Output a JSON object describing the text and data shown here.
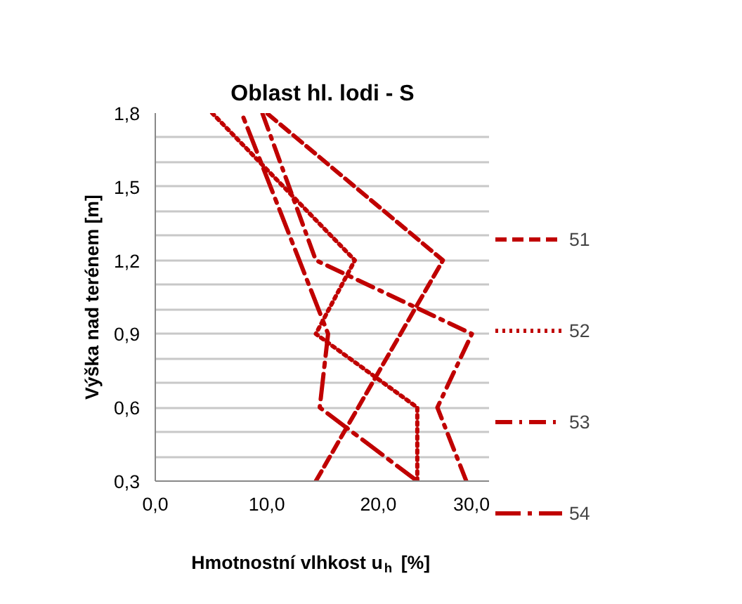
{
  "chart_data": {
    "type": "line",
    "title": "Oblast hl. lodi - S",
    "xlabel": "Hmotnostní vlhkost u$_{h}$ [%]",
    "ylabel": "Výška nad terénem [m]",
    "xlim": [
      0,
      30
    ],
    "xticks": [
      {
        "value": 0,
        "label": "0,0"
      },
      {
        "value": 10,
        "label": "10,0"
      },
      {
        "value": 20,
        "label": "20,0"
      },
      {
        "value": 30,
        "label": "30,0"
      }
    ],
    "ylim": [
      0.3,
      1.8
    ],
    "yticks": [
      {
        "value": 0.3,
        "label": "0,3"
      },
      {
        "value": 0.4,
        "label": null
      },
      {
        "value": 0.5,
        "label": null
      },
      {
        "value": 0.6,
        "label": "0,6"
      },
      {
        "value": 0.7,
        "label": null
      },
      {
        "value": 0.8,
        "label": null
      },
      {
        "value": 0.9,
        "label": "0,9"
      },
      {
        "value": 1.0,
        "label": null
      },
      {
        "value": 1.1,
        "label": null
      },
      {
        "value": 1.2,
        "label": "1,2"
      },
      {
        "value": 1.3,
        "label": null
      },
      {
        "value": 1.4,
        "label": null
      },
      {
        "value": 1.5,
        "label": "1,5"
      },
      {
        "value": 1.6,
        "label": null
      },
      {
        "value": 1.7,
        "label": null
      },
      {
        "value": 1.8,
        "label": "1,8"
      }
    ],
    "grid": "y",
    "legend": "right",
    "series": [
      {
        "name": "51",
        "color": "#c00000",
        "line_style": "dashed",
        "x": [
          14.4,
          25.8,
          10.0
        ],
        "values": [
          0.3,
          1.2,
          1.8
        ]
      },
      {
        "name": "52",
        "color": "#c00000",
        "line_style": "dotted",
        "x": [
          23.5,
          23.5,
          14.4,
          17.9,
          5.1
        ],
        "values": [
          0.3,
          0.6,
          0.9,
          1.2,
          1.8
        ]
      },
      {
        "name": "53",
        "color": "#c00000",
        "line_style": "dashdot",
        "x": [
          27.9,
          25.3,
          28.4,
          14.4,
          9.6
        ],
        "values": [
          0.3,
          0.6,
          0.9,
          1.2,
          1.8
        ]
      },
      {
        "name": "54",
        "color": "#c00000",
        "line_style": "longdashdot",
        "x": [
          23.5,
          14.75,
          15.5,
          7.75
        ],
        "values": [
          0.3,
          0.6,
          0.9,
          1.8
        ]
      }
    ]
  }
}
